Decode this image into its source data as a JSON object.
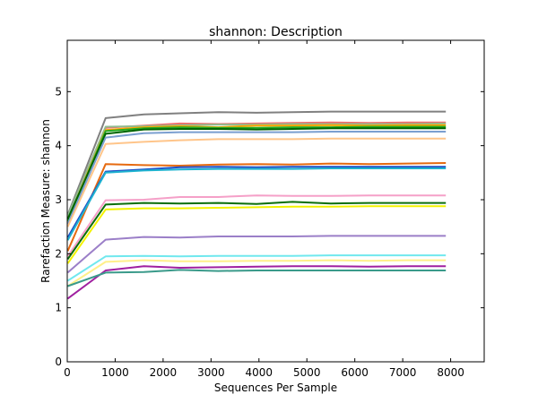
{
  "chart_data": {
    "type": "line",
    "title": "shannon: Description",
    "xlabel": "Sequences Per Sample",
    "ylabel": "Rarefaction Measure: shannon",
    "xlim": [
      0,
      8700
    ],
    "ylim": [
      0,
      5.95
    ],
    "xticks": [
      0,
      1000,
      2000,
      3000,
      4000,
      5000,
      6000,
      7000,
      8000
    ],
    "yticks": [
      0,
      1,
      2,
      3,
      4,
      5
    ],
    "grid": false,
    "legend": "none",
    "x": [
      10,
      800,
      1600,
      2350,
      3150,
      3950,
      4700,
      5500,
      6300,
      7100,
      7900
    ],
    "series": [
      {
        "color": "#808080",
        "values": [
          2.72,
          4.51,
          4.58,
          4.6,
          4.62,
          4.61,
          4.62,
          4.63,
          4.63,
          4.63,
          4.63
        ]
      },
      {
        "color": "#f46a6a",
        "values": [
          2.65,
          4.33,
          4.37,
          4.41,
          4.4,
          4.41,
          4.42,
          4.43,
          4.42,
          4.43,
          4.43
        ]
      },
      {
        "color": "#8fbc8f",
        "values": [
          2.7,
          4.35,
          4.36,
          4.38,
          4.39,
          4.39,
          4.4,
          4.4,
          4.4,
          4.4,
          4.41
        ]
      },
      {
        "color": "#ffa500",
        "values": [
          2.62,
          4.29,
          4.34,
          4.36,
          4.34,
          4.37,
          4.37,
          4.38,
          4.37,
          4.38,
          4.38
        ]
      },
      {
        "color": "#22aa22",
        "values": [
          2.6,
          4.27,
          4.32,
          4.34,
          4.33,
          4.33,
          4.34,
          4.34,
          4.35,
          4.35,
          4.35
        ]
      },
      {
        "color": "#006400",
        "values": [
          2.64,
          4.22,
          4.3,
          4.31,
          4.31,
          4.3,
          4.31,
          4.32,
          4.32,
          4.32,
          4.32
        ]
      },
      {
        "color": "#7b9fd0",
        "values": [
          2.55,
          4.15,
          4.23,
          4.25,
          4.25,
          4.25,
          4.25,
          4.26,
          4.26,
          4.26,
          4.26
        ]
      },
      {
        "color": "#ffc58a",
        "values": [
          2.5,
          4.03,
          4.07,
          4.1,
          4.12,
          4.12,
          4.12,
          4.13,
          4.13,
          4.13,
          4.13
        ]
      },
      {
        "color": "#e66a10",
        "values": [
          2.05,
          3.66,
          3.64,
          3.63,
          3.65,
          3.66,
          3.65,
          3.67,
          3.66,
          3.67,
          3.68
        ]
      },
      {
        "color": "#1f4fc6",
        "values": [
          2.3,
          3.52,
          3.56,
          3.6,
          3.61,
          3.6,
          3.61,
          3.61,
          3.61,
          3.61,
          3.61
        ]
      },
      {
        "color": "#1fb3d0",
        "values": [
          2.25,
          3.5,
          3.54,
          3.56,
          3.57,
          3.57,
          3.57,
          3.58,
          3.58,
          3.58,
          3.58
        ]
      },
      {
        "color": "#f5a0c8",
        "values": [
          1.95,
          2.99,
          3.0,
          3.05,
          3.05,
          3.08,
          3.07,
          3.07,
          3.08,
          3.08,
          3.08
        ]
      },
      {
        "color": "#0b6e0b",
        "values": [
          1.9,
          2.91,
          2.94,
          2.93,
          2.94,
          2.92,
          2.96,
          2.93,
          2.94,
          2.94,
          2.94
        ]
      },
      {
        "color": "#f2f200",
        "values": [
          1.82,
          2.82,
          2.84,
          2.84,
          2.85,
          2.86,
          2.87,
          2.87,
          2.88,
          2.88,
          2.88
        ]
      },
      {
        "color": "#9b7fc8",
        "values": [
          1.65,
          2.26,
          2.31,
          2.3,
          2.32,
          2.32,
          2.32,
          2.33,
          2.33,
          2.33,
          2.33
        ]
      },
      {
        "color": "#70e8ee",
        "values": [
          1.5,
          1.95,
          1.96,
          1.95,
          1.96,
          1.96,
          1.96,
          1.97,
          1.97,
          1.97,
          1.97
        ]
      },
      {
        "color": "#fff08a",
        "values": [
          1.4,
          1.85,
          1.88,
          1.86,
          1.86,
          1.87,
          1.87,
          1.88,
          1.87,
          1.88,
          1.88
        ]
      },
      {
        "color": "#a020a0",
        "values": [
          1.17,
          1.69,
          1.77,
          1.74,
          1.75,
          1.76,
          1.77,
          1.77,
          1.76,
          1.77,
          1.77
        ]
      },
      {
        "color": "#3a9a8a",
        "values": [
          1.4,
          1.65,
          1.66,
          1.7,
          1.68,
          1.69,
          1.69,
          1.69,
          1.69,
          1.69,
          1.69
        ]
      }
    ]
  }
}
